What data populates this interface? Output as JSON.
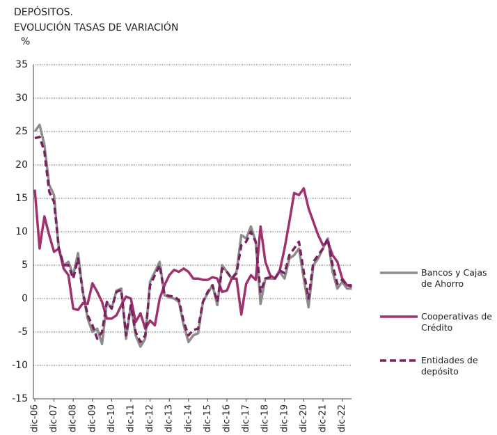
{
  "chart_data": {
    "type": "line",
    "title": "DEPÓSITOS.",
    "subtitle": "EVOLUCIÓN TASAS DE VARIACIÓN",
    "y_label": "%",
    "categories": [
      "dic-06",
      null,
      null,
      null,
      "dic-07",
      null,
      null,
      null,
      "dic-08",
      null,
      null,
      null,
      "dic-09",
      null,
      null,
      null,
      "dic-10",
      null,
      null,
      null,
      "dic-11",
      null,
      null,
      null,
      "dic-12",
      null,
      null,
      null,
      "dic-13",
      null,
      null,
      null,
      "dic-14",
      null,
      null,
      null,
      "dic-15",
      null,
      null,
      null,
      "dic-16",
      null,
      null,
      null,
      "dic-17",
      null,
      null,
      null,
      "dic-18",
      null,
      null,
      null,
      "dic-19",
      null,
      null,
      null,
      "dic-20",
      null,
      null,
      null,
      "dic-21",
      null,
      null,
      null,
      "dic-22",
      null,
      null
    ],
    "series": [
      {
        "name": "Bancos y Cajas de Ahorro",
        "color": "#8c8c8c",
        "style": "solid",
        "values": [
          25,
          26,
          23,
          17,
          15.5,
          7.5,
          5,
          5.5,
          3.5,
          6.8,
          1,
          -3,
          -5,
          -4.5,
          -6.8,
          -0.5,
          -1.5,
          1.2,
          1.5,
          -6,
          -1,
          -5.5,
          -7.2,
          -6,
          2.5,
          4,
          5.5,
          0.5,
          0.2,
          0,
          -0.5,
          -4,
          -6.5,
          -5.5,
          -5.2,
          -0.5,
          0.8,
          2,
          -1,
          5,
          4,
          3,
          4,
          9.5,
          9,
          10.8,
          8.5,
          -0.8,
          3,
          3,
          3,
          4,
          3,
          6,
          6.5,
          7.5,
          3,
          -1.3,
          5,
          6,
          7.5,
          9,
          4,
          1.5,
          2.5,
          1.5,
          1.5
        ]
      },
      {
        "name": "Cooperativas de Crédito",
        "color": "#a0306e",
        "style": "solid",
        "values": [
          16.3,
          7.5,
          12.3,
          9.5,
          7,
          7.5,
          4.5,
          3.5,
          -1.5,
          -1.7,
          -0.7,
          -0.8,
          2.3,
          1,
          -0.5,
          -3,
          -3,
          -2.5,
          -1,
          0.3,
          0,
          -3.5,
          -2.2,
          -4.5,
          -3.3,
          -4,
          0,
          2,
          3.5,
          4.3,
          4,
          4.5,
          4,
          3,
          3,
          2.8,
          2.8,
          3.2,
          3,
          1,
          1.2,
          3,
          3,
          -2.4,
          2.2,
          3.5,
          2.8,
          10.8,
          5.5,
          3.5,
          3,
          4.2,
          7.5,
          11.5,
          15.8,
          15.5,
          16.5,
          13.5,
          11.5,
          9.5,
          8,
          8.5,
          6.5,
          5.5,
          3,
          2,
          2
        ]
      },
      {
        "name": "Entidades de depósito",
        "color": "#7a2260",
        "style": "dashed",
        "values": [
          24,
          24.2,
          22,
          16,
          14.5,
          7.5,
          5,
          5,
          3,
          6,
          1,
          -2.5,
          -4,
          -6,
          -5,
          -0.5,
          -1.5,
          1,
          1.3,
          -5.5,
          -1,
          -5,
          -6.5,
          -5.5,
          2,
          3.5,
          5,
          0.6,
          0.4,
          0.3,
          -0.2,
          -3.5,
          -5.5,
          -4.7,
          -4.5,
          -0.5,
          1,
          2,
          -0.5,
          4.5,
          4,
          3,
          3.8,
          8,
          8.5,
          10,
          8.5,
          1,
          3,
          3.2,
          3,
          4.2,
          3.8,
          6.5,
          7.5,
          8.5,
          4,
          0,
          5.5,
          6.5,
          7.5,
          9,
          5,
          2.2,
          2.8,
          2,
          1.8
        ]
      }
    ],
    "ylim": [
      -15,
      35
    ],
    "yticks": [
      35,
      30,
      25,
      20,
      15,
      10,
      5,
      0,
      -5,
      -10,
      -15
    ],
    "grid": true,
    "legend": "right"
  }
}
